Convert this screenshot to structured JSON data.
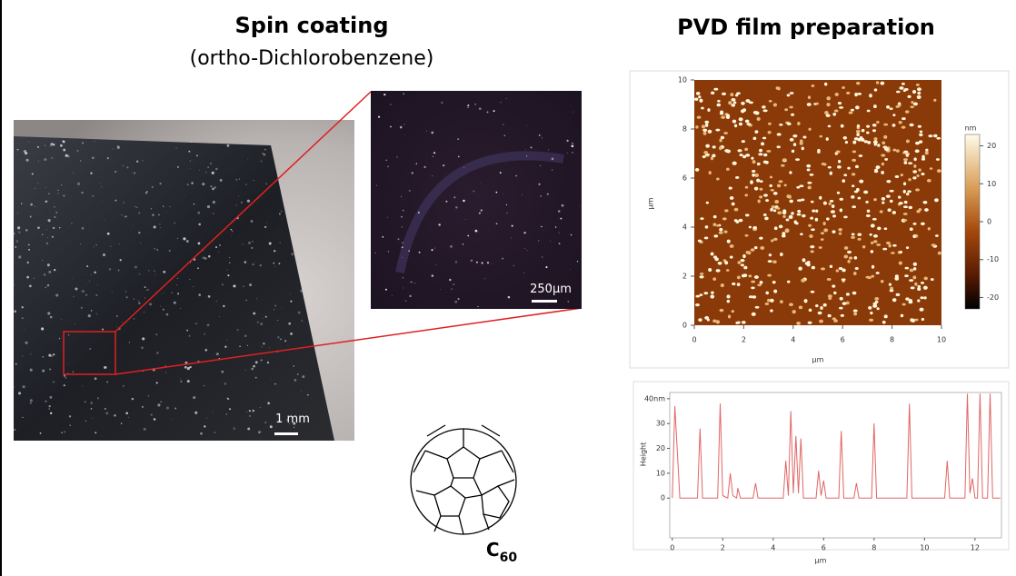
{
  "spin_coating": {
    "title": "Spin coating",
    "subtitle": "(ortho-Dichlorobenzene)",
    "photo_scale": "1 mm",
    "inset_scale": "250μm"
  },
  "molecule": {
    "label": "C",
    "subscript": "60"
  },
  "pvd": {
    "title": "PVD film preparation",
    "afm_image": {
      "xlim": [
        0,
        10
      ],
      "ylim": [
        0,
        10
      ],
      "xticks": [
        0,
        2,
        4,
        6,
        8,
        10
      ],
      "yticks": [
        0,
        2,
        4,
        6,
        8,
        10
      ],
      "x_label": "μm",
      "y_label": "μm",
      "colorbar": {
        "unit": "nm",
        "lim": [
          -23,
          23
        ],
        "ticks": [
          20,
          10,
          0,
          -10,
          -20
        ]
      }
    },
    "height_profile": {
      "type": "line",
      "color": "#e06666",
      "x": [
        0,
        0.1,
        0.3,
        1.0,
        1.1,
        1.2,
        1.8,
        1.9,
        2.0,
        2.2,
        2.3,
        2.4,
        2.55,
        2.6,
        2.7,
        3.2,
        3.3,
        3.4,
        4.4,
        4.5,
        4.6,
        4.7,
        4.8,
        4.9,
        5.0,
        5.1,
        5.2,
        5.7,
        5.8,
        5.9,
        6.0,
        6.1,
        6.6,
        6.7,
        6.8,
        7.2,
        7.3,
        7.4,
        7.9,
        8.0,
        8.1,
        9.3,
        9.4,
        9.5,
        10.8,
        10.9,
        11.0,
        11.6,
        11.7,
        11.8,
        11.9,
        12.0,
        12.1,
        12.2,
        12.3,
        12.5,
        12.6,
        12.7,
        13.0
      ],
      "height": [
        0,
        37,
        0,
        0,
        28,
        0,
        0,
        38,
        1,
        0,
        10,
        1,
        0,
        4,
        0,
        0,
        6,
        0,
        0,
        15,
        1,
        35,
        2,
        25,
        2,
        24,
        0,
        0,
        11,
        1,
        7,
        0,
        0,
        27,
        0,
        0,
        6,
        0,
        0,
        30,
        0,
        0,
        38,
        0,
        0,
        15,
        0,
        0,
        42,
        2,
        8,
        0,
        0,
        42,
        0,
        0,
        42,
        0,
        0
      ],
      "xlim": [
        -0.1,
        13.05
      ],
      "ylim": [
        -16,
        42.5
      ],
      "xticks": [
        0,
        2,
        4,
        6,
        8,
        10,
        12
      ],
      "yticks": [
        {
          "value": 40,
          "label": "40nm"
        },
        30,
        20,
        10,
        0
      ],
      "x_label": "μm",
      "y_label": "Height"
    }
  }
}
